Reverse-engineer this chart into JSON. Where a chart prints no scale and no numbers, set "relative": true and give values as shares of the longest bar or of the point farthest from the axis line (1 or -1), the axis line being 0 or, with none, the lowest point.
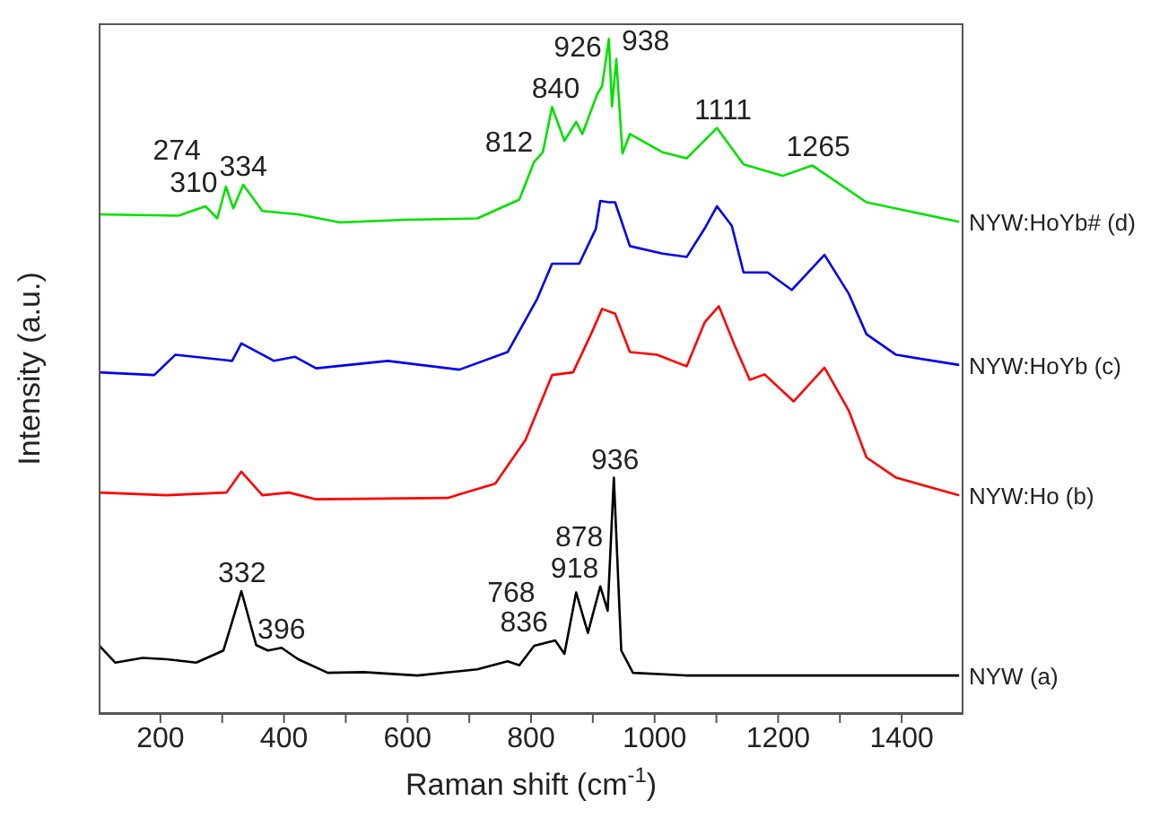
{
  "chart_data": {
    "type": "line",
    "xlabel": "Raman shift (cm$^{-1}$)",
    "ylabel": "Intensity (a.u.)",
    "relative": true,
    "legend": false,
    "xlim": [
      100,
      1500
    ],
    "xticks": [
      200,
      {
        "value": 300,
        "label": null
      },
      400,
      {
        "value": 500,
        "label": null
      },
      600,
      {
        "value": 700,
        "label": null
      },
      800,
      {
        "value": 900,
        "label": null
      },
      1000,
      {
        "value": 1100,
        "label": null
      },
      1200,
      {
        "value": 1300,
        "label": null
      },
      1400
    ],
    "series": [
      {
        "name": "NYW:HoYb# (d)",
        "color": "#00e000",
        "x": [
          100,
          229,
          273,
          292,
          306,
          318,
          334,
          365,
          423,
          491,
          597,
          713,
          781,
          805,
          819,
          834,
          854,
          873,
          883,
          907,
          915,
          926,
          931,
          938,
          948,
          960,
          1013,
          1052,
          1101,
          1144,
          1207,
          1255,
          1343,
          1493
        ],
        "values": [
          0.74,
          0.738,
          0.752,
          0.734,
          0.781,
          0.749,
          0.784,
          0.745,
          0.74,
          0.728,
          0.732,
          0.734,
          0.762,
          0.818,
          0.832,
          0.899,
          0.849,
          0.877,
          0.859,
          0.918,
          0.93,
          1.0,
          0.9,
          0.97,
          0.83,
          0.859,
          0.832,
          0.823,
          0.868,
          0.814,
          0.797,
          0.8125,
          0.758,
          0.729
        ]
      },
      {
        "name": "NYW:HoYb (c)",
        "color": "#0000ee",
        "x": [
          100,
          190,
          224,
          316,
          331,
          384,
          418,
          452,
          568,
          684,
          762,
          810,
          834,
          878,
          905,
          912,
          926,
          936,
          960,
          1013,
          1052,
          1081,
          1101,
          1125,
          1144,
          1183,
          1222,
          1275,
          1314,
          1343,
          1391,
          1493
        ],
        "values": [
          0.506,
          0.502,
          0.532,
          0.523,
          0.549,
          0.523,
          0.529,
          0.512,
          0.523,
          0.51,
          0.536,
          0.615,
          0.667,
          0.667,
          0.719,
          0.76,
          0.758,
          0.758,
          0.693,
          0.682,
          0.677,
          0.719,
          0.752,
          0.723,
          0.654,
          0.654,
          0.628,
          0.68,
          0.623,
          0.5625,
          0.532,
          0.517
        ]
      },
      {
        "name": "NYW:Ho (b)",
        "color": "#ff0000",
        "x": [
          100,
          210,
          307,
          331,
          365,
          408,
          452,
          665,
          742,
          791,
          834,
          868,
          897,
          915,
          936,
          960,
          1004,
          1052,
          1081,
          1104,
          1130,
          1154,
          1178,
          1225,
          1275,
          1314,
          1343,
          1391,
          1493
        ],
        "values": [
          0.328,
          0.324,
          0.328,
          0.359,
          0.324,
          0.328,
          0.318,
          0.32,
          0.341,
          0.406,
          0.502,
          0.506,
          0.5625,
          0.6,
          0.593,
          0.536,
          0.532,
          0.515,
          0.58,
          0.604,
          0.545,
          0.495,
          0.503,
          0.463,
          0.513,
          0.45,
          0.38,
          0.35,
          0.324
        ]
      },
      {
        "name": "NYW (a)",
        "color": "#000000",
        "x": [
          100,
          127,
          171,
          210,
          258,
          302,
          331,
          355,
          374,
          396,
          423,
          471,
          529,
          616,
          713,
          762,
          781,
          805,
          839,
          854,
          873,
          892,
          912,
          924,
          934,
          946,
          965,
          1051,
          1246,
          1493
        ],
        "values": [
          0.102,
          0.076,
          0.083,
          0.081,
          0.076,
          0.094,
          0.182,
          0.102,
          0.094,
          0.098,
          0.081,
          0.061,
          0.062,
          0.057,
          0.066,
          0.078,
          0.072,
          0.101,
          0.109,
          0.089,
          0.18,
          0.12,
          0.189,
          0.153,
          0.35,
          0.094,
          0.061,
          0.057,
          0.057,
          0.057
        ]
      }
    ],
    "annotations": [
      {
        "text": "274",
        "x": 274,
        "y": 0.752
      },
      {
        "text": "310",
        "x": 310,
        "y": 0.781
      },
      {
        "text": "334",
        "x": 334,
        "y": 0.784
      },
      {
        "text": "812",
        "x": 812,
        "y": 0.82
      },
      {
        "text": "840",
        "x": 840,
        "y": 0.899
      },
      {
        "text": "926",
        "x": 926,
        "y": 1.0
      },
      {
        "text": "938",
        "x": 938,
        "y": 0.97
      },
      {
        "text": "1111",
        "x": 1111,
        "y": 0.868
      },
      {
        "text": "1265",
        "x": 1265,
        "y": 0.8125
      },
      {
        "text": "332",
        "x": 332,
        "y": 0.182
      },
      {
        "text": "396",
        "x": 396,
        "y": 0.098
      },
      {
        "text": "768",
        "x": 768,
        "y": 0.078
      },
      {
        "text": "836",
        "x": 836,
        "y": 0.109
      },
      {
        "text": "878",
        "x": 878,
        "y": 0.18
      },
      {
        "text": "918",
        "x": 918,
        "y": 0.189
      },
      {
        "text": "936",
        "x": 936,
        "y": 0.35
      }
    ]
  }
}
